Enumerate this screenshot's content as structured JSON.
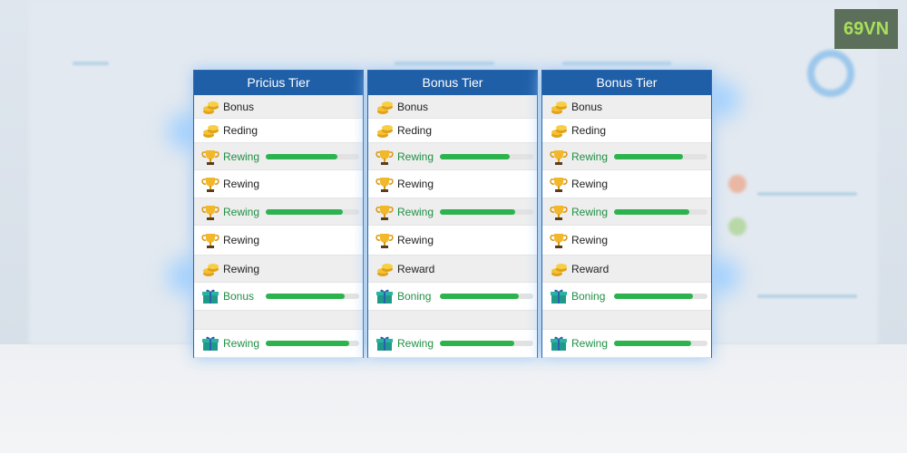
{
  "logo": "69VN",
  "cards": [
    {
      "title": "Pricius Tier",
      "rows": [
        {
          "icon": "coins",
          "label": "Bonus"
        },
        {
          "icon": "coins",
          "label": "Reding"
        },
        {
          "icon": "trophy",
          "label": "Rewing",
          "progress": 77
        },
        {
          "icon": "trophy",
          "label": "Rewing"
        },
        {
          "icon": "trophy",
          "label": "Rewing",
          "progress": 83
        },
        {
          "icon": "trophy",
          "label": "Rewing"
        },
        {
          "icon": "coins",
          "label": "Rewing"
        },
        {
          "icon": "gift",
          "label": "Bonus",
          "progress": 84
        },
        {
          "icon": "gift",
          "label": "Rewing",
          "progress": 89
        }
      ]
    },
    {
      "title": "Bonus Tier",
      "rows": [
        {
          "icon": "coins",
          "label": "Bonus"
        },
        {
          "icon": "coins",
          "label": "Reding"
        },
        {
          "icon": "trophy",
          "label": "Rewing",
          "progress": 75
        },
        {
          "icon": "trophy",
          "label": "Rewing"
        },
        {
          "icon": "trophy",
          "label": "Rewing",
          "progress": 81
        },
        {
          "icon": "trophy",
          "label": "Rewing"
        },
        {
          "icon": "coins",
          "label": "Reward"
        },
        {
          "icon": "gift",
          "label": "Boning",
          "progress": 84
        },
        {
          "icon": "gift",
          "label": "Rewing",
          "progress": 80
        }
      ]
    },
    {
      "title": "Bonus Tier",
      "rows": [
        {
          "icon": "coins",
          "label": "Bonus"
        },
        {
          "icon": "coins",
          "label": "Reding"
        },
        {
          "icon": "trophy",
          "label": "Rewing",
          "progress": 74
        },
        {
          "icon": "trophy",
          "label": "Rewing"
        },
        {
          "icon": "trophy",
          "label": "Rewing",
          "progress": 81
        },
        {
          "icon": "trophy",
          "label": "Rewing"
        },
        {
          "icon": "coins",
          "label": "Reward"
        },
        {
          "icon": "gift",
          "label": "Boning",
          "progress": 84
        },
        {
          "icon": "gift",
          "label": "Rewing",
          "progress": 83
        }
      ]
    }
  ]
}
